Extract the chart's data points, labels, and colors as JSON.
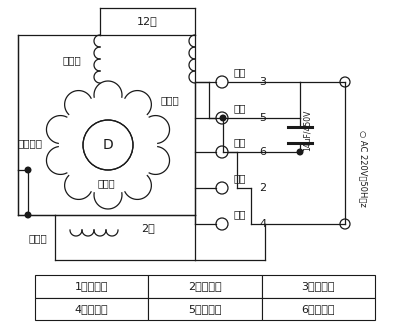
{
  "bg_color": "#ffffff",
  "line_color": "#1a1a1a",
  "table_labels": [
    [
      "1（空脚）",
      "2（红色）",
      "3（黑色）"
    ],
    [
      "4（白色）",
      "5（蓝色）",
      "6（灰色）"
    ]
  ],
  "wire_labels": [
    {
      "text": "黑色",
      "num": "3"
    },
    {
      "text": "蓝色",
      "num": "5"
    },
    {
      "text": "灰色",
      "num": "6"
    },
    {
      "text": "红色",
      "num": "2"
    },
    {
      "text": "白色",
      "num": "4"
    }
  ],
  "label_12pole": "12极",
  "label_2pole": "2极",
  "label_main_winding": "主绕组",
  "label_aux_winding": "副绕组",
  "label_common": "公共绕组",
  "cap_label": "14μF/450V",
  "ac_label": "○ AC 220V（50H）z"
}
